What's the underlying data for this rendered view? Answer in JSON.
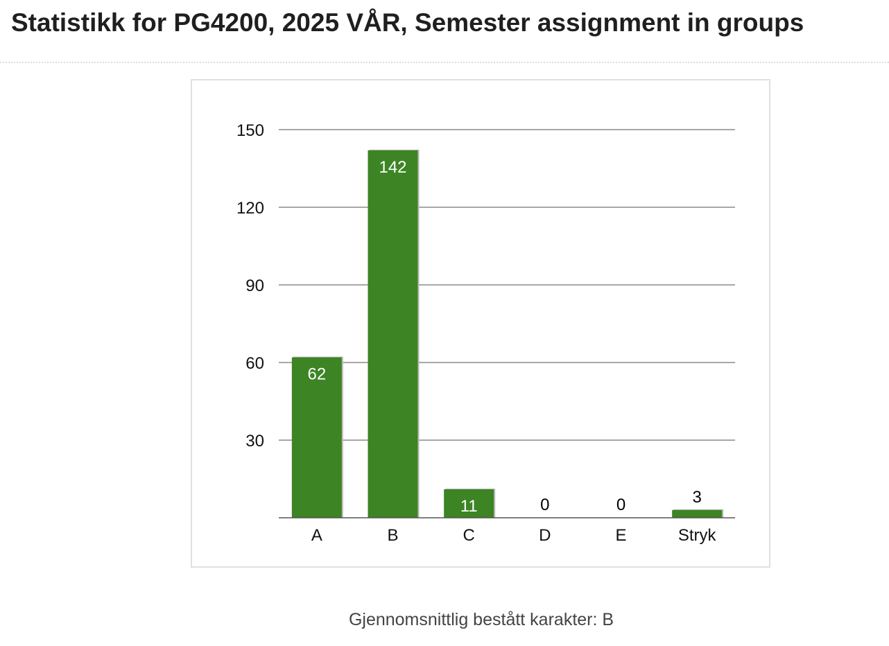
{
  "page": {
    "title": "Statistikk for PG4200, 2025 VÅR, Semester assignment in groups",
    "footer": "Gjennomsnittlig bestått karakter: B"
  },
  "chart_data": {
    "type": "bar",
    "categories": [
      "A",
      "B",
      "C",
      "D",
      "E",
      "Stryk"
    ],
    "values": [
      62,
      142,
      11,
      0,
      0,
      3
    ],
    "ylim": [
      0,
      150
    ],
    "yticks": [
      30,
      60,
      90,
      120,
      150
    ],
    "title": "",
    "xlabel": "",
    "ylabel": "",
    "grid": true,
    "legend": "none",
    "bar_color": "#3c8424",
    "label_inside_color": "#ffffff",
    "label_outside_color": "#000000"
  }
}
